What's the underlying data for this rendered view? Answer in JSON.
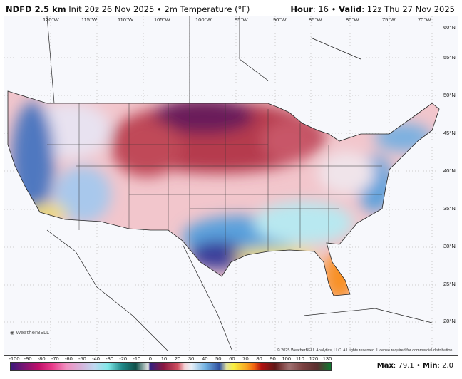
{
  "header": {
    "model": "NDFD 2.5 km",
    "init": "Init 20z 26 Nov 2025",
    "sep": "•",
    "field": "2m Temperature (°F)",
    "hour_label": "Hour",
    "hour": "16",
    "valid_label": "Valid",
    "valid": "12z Thu 27 Nov 2025"
  },
  "map": {
    "longitudes": [
      "120°W",
      "115°W",
      "110°W",
      "105°W",
      "100°W",
      "95°W",
      "90°W",
      "85°W",
      "80°W",
      "75°W",
      "70°W"
    ],
    "latitudes": [
      "60°N",
      "55°N",
      "50°N",
      "45°N",
      "40°N",
      "35°N",
      "30°N",
      "25°N",
      "20°N"
    ],
    "copyright": "© 2025 WeatherBELL Analytics, LLC. All rights reserved. License required for commercial distribution.",
    "logo": "WeatherBELL"
  },
  "colorbar": {
    "units": "°F",
    "ticks": [
      "-100",
      "-90",
      "-80",
      "-70",
      "-60",
      "-50",
      "-40",
      "-30",
      "-20",
      "-10",
      "0",
      "10",
      "20",
      "30",
      "40",
      "50",
      "60",
      "70",
      "80",
      "90",
      "100",
      "110",
      "120",
      "130"
    ],
    "colors": {
      "-100": "#3a1a7a",
      "-80": "#c0106a",
      "-70": "#e83c8a",
      "-60": "#f090c0",
      "-50": "#d8b0d8",
      "-40": "#c0d8f0",
      "-30": "#80e8e8",
      "-20": "#208888",
      "-10": "#10504a",
      "-1": "#e6e6e6",
      "0": "#302080",
      "10": "#8a1840",
      "20": "#d05060",
      "25": "#f4d0d4",
      "30": "#e8f0f8",
      "40": "#70b0e0",
      "50": "#3050a0",
      "55": "#e0e0a0",
      "60": "#f8f040",
      "70": "#f8a020",
      "75": "#f06010",
      "80": "#b01010",
      "90": "#601818",
      "100": "#a07070",
      "110": "#7a4040",
      "120": "#5a3030",
      "130": "#107830"
    }
  },
  "stats": {
    "max_label": "Max",
    "max": "79.1",
    "min_label": "Min",
    "min": "2.0"
  }
}
